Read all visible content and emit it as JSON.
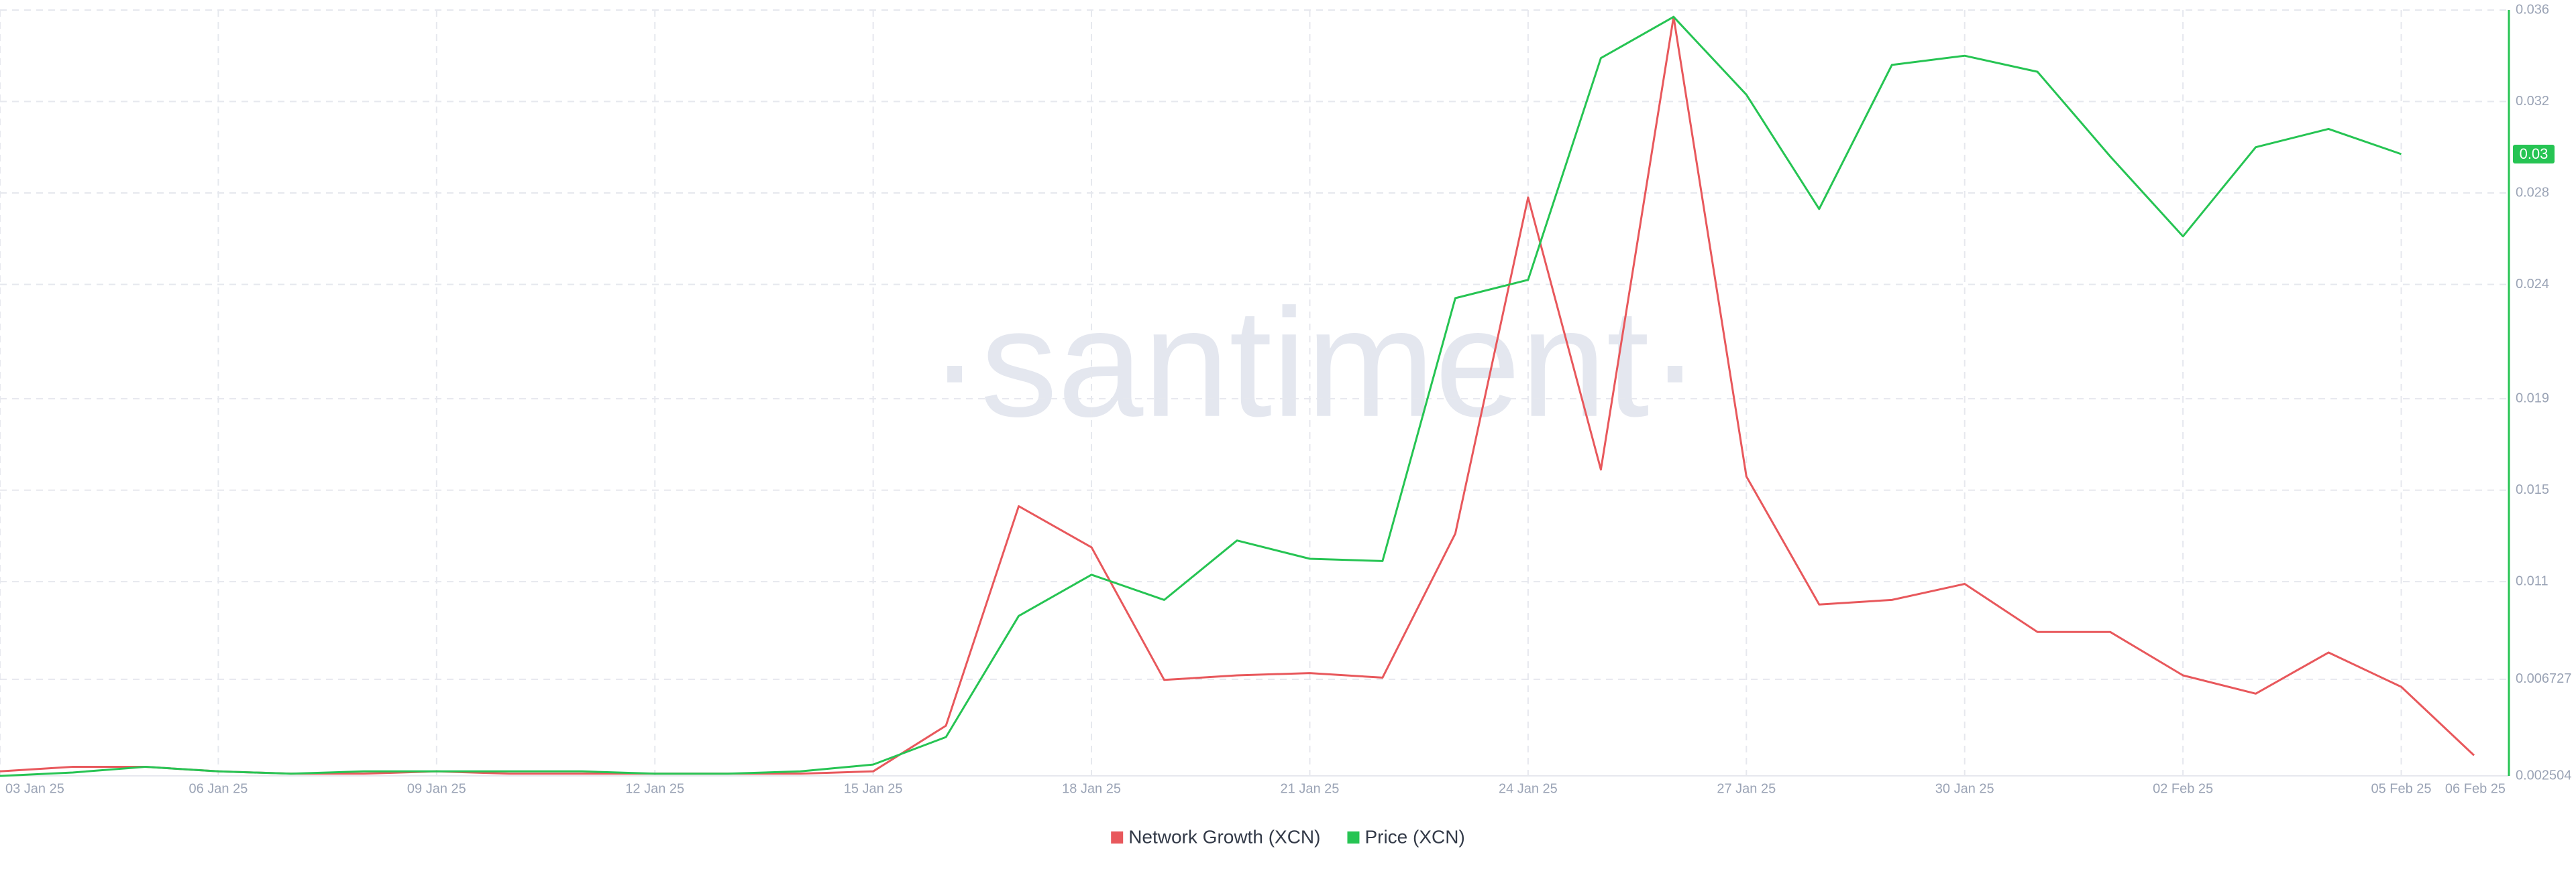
{
  "chart_data": {
    "type": "line",
    "watermark": "·santiment·",
    "categories": [
      "03 Jan 25",
      null,
      null,
      "06 Jan 25",
      null,
      null,
      "09 Jan 25",
      null,
      null,
      "12 Jan 25",
      null,
      null,
      "15 Jan 25",
      null,
      null,
      "18 Jan 25",
      null,
      null,
      "21 Jan 25",
      null,
      null,
      "24 Jan 25",
      null,
      null,
      "27 Jan 25",
      null,
      null,
      "30 Jan 25",
      null,
      null,
      "02 Feb 25",
      null,
      null,
      "05 Feb 25",
      "06 Feb 25"
    ],
    "series": [
      {
        "name": "Network Growth (XCN)",
        "color": "#e8585c",
        "values": [
          0.0027,
          0.0029,
          0.0029,
          0.0027,
          0.0026,
          0.0026,
          0.0027,
          0.0026,
          0.0026,
          0.0026,
          0.0026,
          0.0026,
          0.0027,
          0.0047,
          0.0143,
          0.0125,
          0.0067,
          0.0069,
          0.007,
          0.0068,
          0.0131,
          0.0278,
          0.0159,
          0.0357,
          0.0156,
          0.01,
          0.0102,
          0.0109,
          0.0088,
          0.0088,
          0.0069,
          0.0061,
          0.0079,
          0.0064,
          0.0034
        ]
      },
      {
        "name": "Price (XCN)",
        "color": "#26c453",
        "values": [
          0.0025,
          0.00265,
          0.0029,
          0.0027,
          0.0026,
          0.0027,
          0.0027,
          0.0027,
          0.0027,
          0.0026,
          0.0026,
          0.0027,
          0.003,
          0.0042,
          0.0095,
          0.0113,
          0.0102,
          0.0128,
          0.012,
          0.0119,
          0.0234,
          0.0242,
          0.0339,
          0.0357,
          0.0323,
          0.0273,
          0.0336,
          0.034,
          0.0333,
          0.0296,
          0.0261,
          0.03,
          0.0308,
          0.0297,
          null
        ]
      }
    ],
    "current_price_label": "0.03",
    "ylim": [
      0.002504,
      0.036
    ],
    "yticks": [
      0.002504,
      0.006727,
      0.011,
      0.015,
      0.019,
      0.024,
      0.028,
      0.032,
      0.036
    ],
    "grid": true
  }
}
